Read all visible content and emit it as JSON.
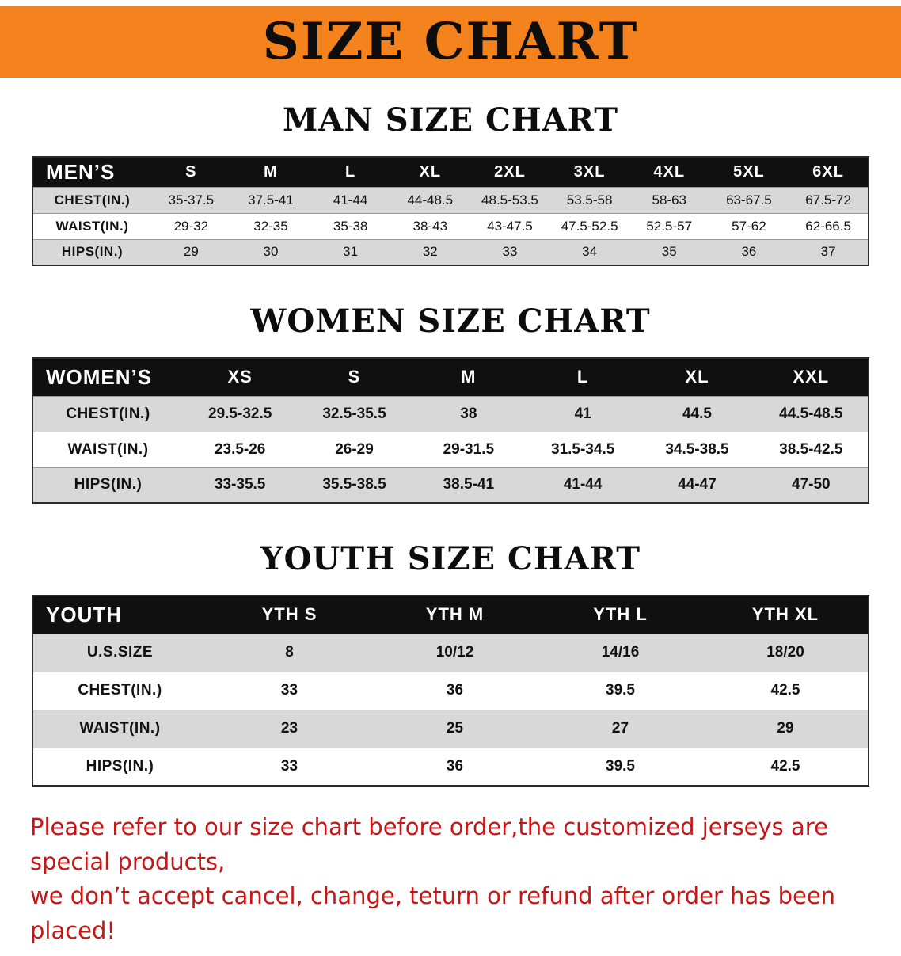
{
  "colors": {
    "banner_bg": "#f5831d",
    "header_bg": "#101010",
    "row_alt": "#d8d8d8",
    "disclaimer_red": "#c81414"
  },
  "banner": {
    "title": "SIZE CHART"
  },
  "sections": [
    {
      "key": "men",
      "heading": "MAN SIZE CHART",
      "table": {
        "header": [
          "MEN’S",
          "S",
          "M",
          "L",
          "XL",
          "2XL",
          "3XL",
          "4XL",
          "5XL",
          "6XL"
        ],
        "rows": [
          {
            "label": "CHEST(IN.)",
            "values": [
              "35-37.5",
              "37.5-41",
              "41-44",
              "44-48.5",
              "48.5-53.5",
              "53.5-58",
              "58-63",
              "63-67.5",
              "67.5-72"
            ]
          },
          {
            "label": "WAIST(IN.)",
            "values": [
              "29-32",
              "32-35",
              "35-38",
              "38-43",
              "43-47.5",
              "47.5-52.5",
              "52.5-57",
              "57-62",
              "62-66.5"
            ]
          },
          {
            "label": "HIPS(IN.)",
            "values": [
              "29",
              "30",
              "31",
              "32",
              "33",
              "34",
              "35",
              "36",
              "37"
            ]
          }
        ]
      }
    },
    {
      "key": "women",
      "heading": "WOMEN SIZE CHART",
      "table": {
        "header": [
          "WOMEN’S",
          "XS",
          "S",
          "M",
          "L",
          "XL",
          "XXL"
        ],
        "rows": [
          {
            "label": "CHEST(IN.)",
            "values": [
              "29.5-32.5",
              "32.5-35.5",
              "38",
              "41",
              "44.5",
              "44.5-48.5"
            ]
          },
          {
            "label": "WAIST(IN.)",
            "values": [
              "23.5-26",
              "26-29",
              "29-31.5",
              "31.5-34.5",
              "34.5-38.5",
              "38.5-42.5"
            ]
          },
          {
            "label": "HIPS(IN.)",
            "values": [
              "33-35.5",
              "35.5-38.5",
              "38.5-41",
              "41-44",
              "44-47",
              "47-50"
            ]
          }
        ]
      }
    },
    {
      "key": "youth",
      "heading": "YOUTH SIZE CHART",
      "table": {
        "header": [
          "YOUTH",
          "YTH S",
          "YTH M",
          "YTH L",
          "YTH XL"
        ],
        "rows": [
          {
            "label": "U.S.SIZE",
            "values": [
              "8",
              "10/12",
              "14/16",
              "18/20"
            ]
          },
          {
            "label": "CHEST(IN.)",
            "values": [
              "33",
              "36",
              "39.5",
              "42.5"
            ]
          },
          {
            "label": "WAIST(IN.)",
            "values": [
              "23",
              "25",
              "27",
              "29"
            ]
          },
          {
            "label": "HIPS(IN.)",
            "values": [
              "33",
              "36",
              "39.5",
              "42.5"
            ]
          }
        ]
      }
    }
  ],
  "disclaimer": {
    "line1": "Please refer to our size chart before order,the customized jerseys are special products,",
    "line2": "we don’t accept cancel, change, teturn or refund after order has been placed!"
  }
}
